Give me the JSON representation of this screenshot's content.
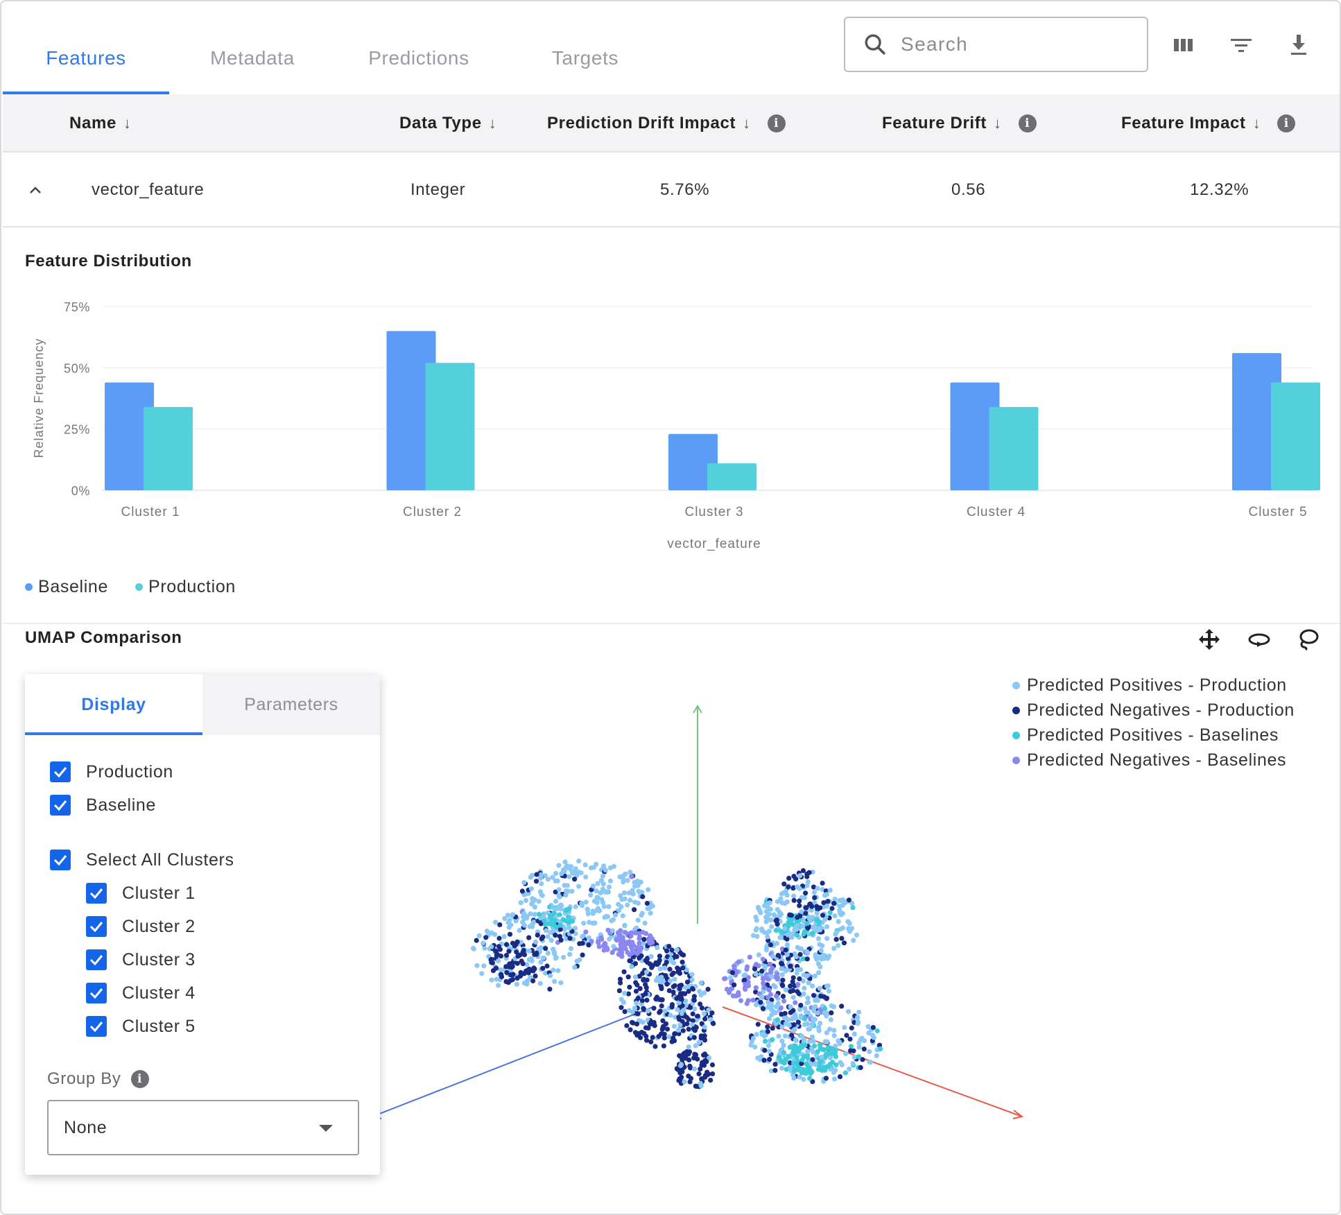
{
  "tabs": {
    "features": "Features",
    "metadata": "Metadata",
    "predictions": "Predictions",
    "targets": "Targets"
  },
  "search": {
    "placeholder": "Search"
  },
  "table": {
    "headers": {
      "name": "Name",
      "data_type": "Data Type",
      "prediction_drift_impact": "Prediction Drift Impact",
      "feature_drift": "Feature Drift",
      "feature_impact": "Feature Impact"
    },
    "row": {
      "name": "vector_feature",
      "data_type": "Integer",
      "prediction_drift_impact": "5.76%",
      "feature_drift": "0.56",
      "feature_impact": "12.32%"
    }
  },
  "feature_distribution": {
    "title": "Feature Distribution",
    "legend": {
      "baseline": "Baseline",
      "production": "Production"
    }
  },
  "chart_data": {
    "type": "bar",
    "title": "Feature Distribution",
    "xlabel": "vector_feature",
    "ylabel": "Relative Frequency",
    "ylim": [
      0,
      75
    ],
    "y_ticks": [
      "0%",
      "25%",
      "50%",
      "75%"
    ],
    "categories": [
      "Cluster 1",
      "Cluster 2",
      "Cluster 3",
      "Cluster 4",
      "Cluster 5"
    ],
    "series": [
      {
        "name": "Baseline",
        "color": "#5b9cf6",
        "values": [
          44,
          65,
          23,
          44,
          56
        ]
      },
      {
        "name": "Production",
        "color": "#54d0dc",
        "values": [
          34,
          52,
          11,
          34,
          44
        ]
      }
    ]
  },
  "umap": {
    "title": "UMAP Comparison",
    "panel": {
      "tabs": {
        "display": "Display",
        "parameters": "Parameters"
      },
      "production": "Production",
      "baseline": "Baseline",
      "select_all": "Select All Clusters",
      "clusters": [
        "Cluster 1",
        "Cluster 2",
        "Cluster 3",
        "Cluster 4",
        "Cluster 5"
      ],
      "group_by_label": "Group By",
      "group_by_value": "None"
    },
    "legend": [
      {
        "label": "Predicted Positives - Production",
        "color": "#8cc8f5"
      },
      {
        "label": "Predicted Negatives - Production",
        "color": "#1a2b84"
      },
      {
        "label": "Predicted Positives - Baselines",
        "color": "#3ccbd8"
      },
      {
        "label": "Predicted Negatives - Baselines",
        "color": "#8a88f0"
      }
    ]
  },
  "colors": {
    "accent": "#2f7ae5",
    "checkbox": "#1565e8"
  }
}
